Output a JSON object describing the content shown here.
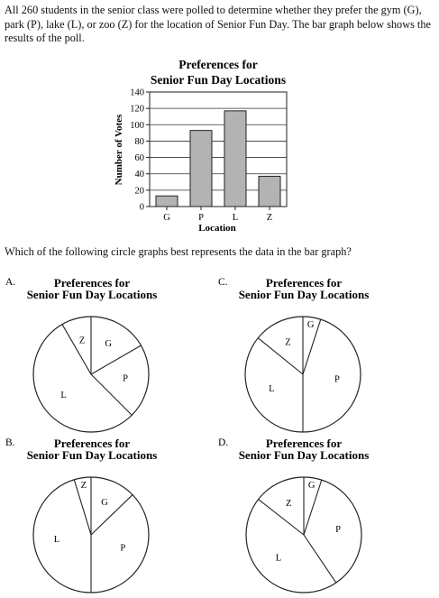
{
  "intro": "All 260 students in the senior class were polled to determine whether they prefer the gym (G), park (P), lake (L), or zoo (Z) for the location of Senior Fun Day. The bar graph below shows the results of the poll.",
  "question": "Which of the following circle graphs best represents the data in the bar graph?",
  "chart_data": [
    {
      "type": "bar",
      "title": [
        "Preferences for",
        "Senior Fun Day Locations"
      ],
      "categories": [
        "G",
        "P",
        "L",
        "Z"
      ],
      "values": [
        13,
        93,
        117,
        37
      ],
      "xlabel": "Location",
      "ylabel": "Number of Votes",
      "ylim": [
        0,
        140
      ],
      "yticks": [
        0,
        20,
        40,
        60,
        80,
        100,
        120,
        140
      ],
      "grid": true
    }
  ],
  "options": [
    {
      "letter": "A.",
      "title": [
        "Preferences for",
        "Senior Fun Day Locations"
      ],
      "slices": [
        {
          "label": "G",
          "deg": 60
        },
        {
          "label": "P",
          "deg": 75
        },
        {
          "label": "L",
          "deg": 195
        },
        {
          "label": "Z",
          "deg": 30
        }
      ]
    },
    {
      "letter": "B.",
      "title": [
        "Preferences for",
        "Senior Fun Day Locations"
      ],
      "slices": [
        {
          "label": "G",
          "deg": 46
        },
        {
          "label": "P",
          "deg": 134
        },
        {
          "label": "L",
          "deg": 163
        },
        {
          "label": "Z",
          "deg": 17
        }
      ]
    },
    {
      "letter": "C.",
      "title": [
        "Preferences for",
        "Senior Fun Day Locations"
      ],
      "slices": [
        {
          "label": "G",
          "deg": 18
        },
        {
          "label": "P",
          "deg": 162
        },
        {
          "label": "L",
          "deg": 129
        },
        {
          "label": "Z",
          "deg": 51
        }
      ]
    },
    {
      "letter": "D.",
      "title": [
        "Preferences for",
        "Senior Fun Day Locations"
      ],
      "slices": [
        {
          "label": "G",
          "deg": 18
        },
        {
          "label": "P",
          "deg": 128
        },
        {
          "label": "L",
          "deg": 162
        },
        {
          "label": "Z",
          "deg": 52
        }
      ]
    }
  ]
}
